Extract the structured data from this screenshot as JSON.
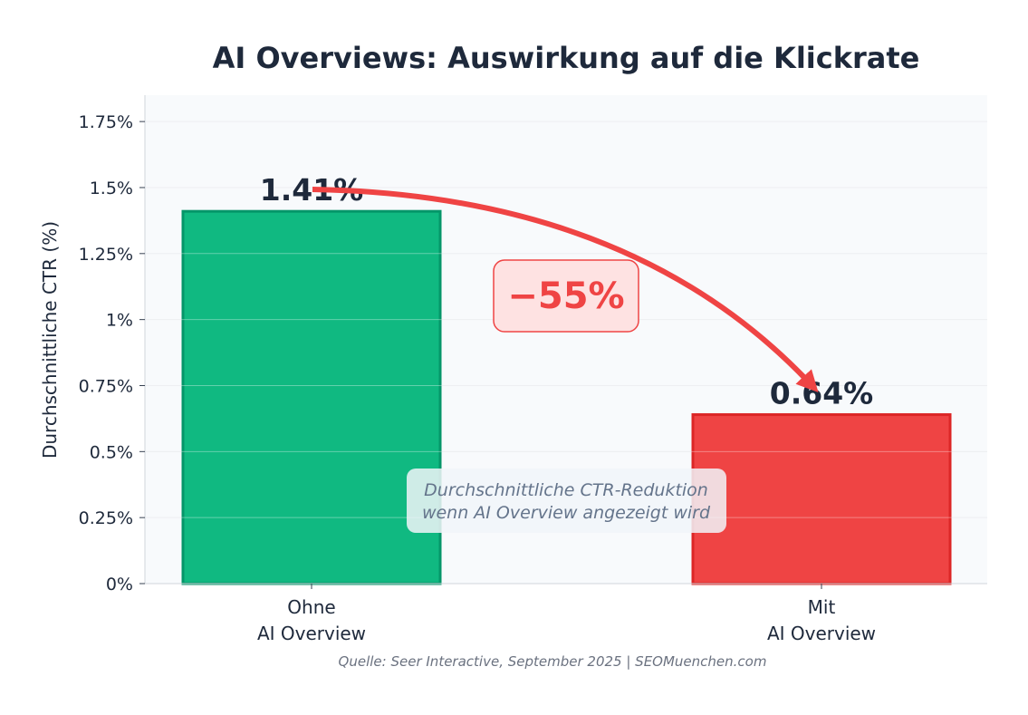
{
  "chart_data": {
    "type": "bar",
    "title": "AI Overviews: Auswirkung auf die Klickrate",
    "ylabel": "Durchschnittliche CTR (%)",
    "xlabel": "",
    "categories": [
      [
        "Ohne",
        "AI Overview"
      ],
      [
        "Mit",
        "AI Overview"
      ]
    ],
    "values": [
      1.41,
      0.64
    ],
    "value_labels": [
      "1.41%",
      "0.64%"
    ],
    "bar_colors": [
      "#10b981",
      "#ef4444"
    ],
    "bar_edge_colors": [
      "#059669",
      "#dc2626"
    ],
    "ylim": [
      0,
      1.85
    ],
    "yticks": [
      0,
      0.25,
      0.5,
      0.75,
      1,
      1.25,
      1.5,
      1.75
    ],
    "ytick_labels": [
      "0%",
      "0.25%",
      "0.5%",
      "0.75%",
      "1%",
      "1.25%",
      "1.5%",
      "1.75%"
    ],
    "grid": true,
    "annotations": {
      "change_label": "−55%",
      "change_color": "#ef4444",
      "note": [
        "Durchschnittliche CTR-Reduktion",
        "wenn AI Overview angezeigt wird"
      ]
    },
    "source": "Quelle: Seer Interactive, September 2025 | SEOMuenchen.com"
  }
}
